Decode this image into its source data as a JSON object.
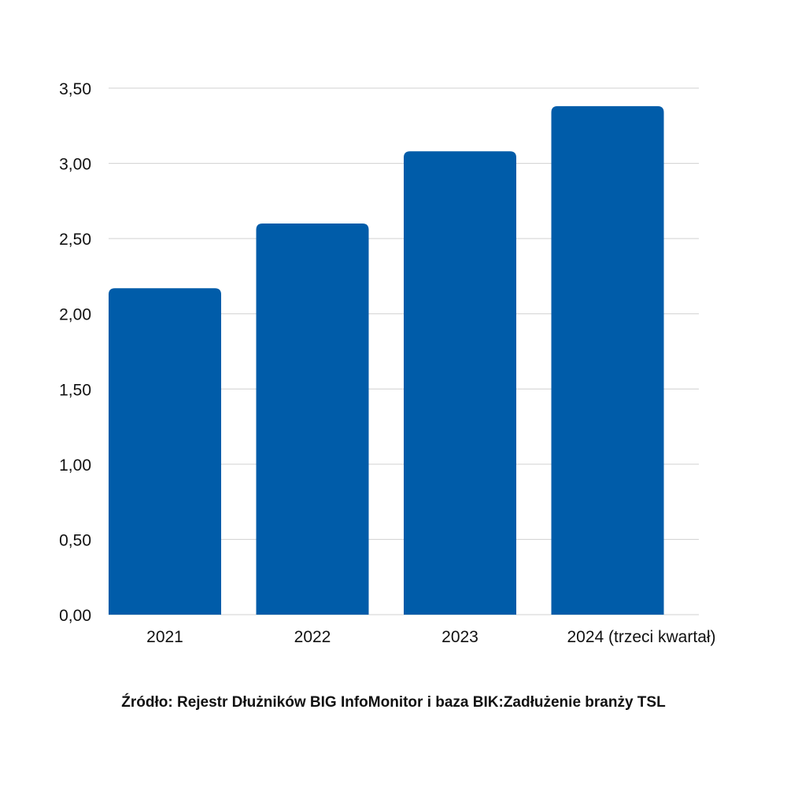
{
  "chart_data": {
    "type": "bar",
    "categories": [
      "2021",
      "2022",
      "2023",
      "2024 (trzeci kwartał)"
    ],
    "values": [
      2.17,
      2.6,
      3.08,
      3.38
    ],
    "ylim": [
      0,
      3.5
    ],
    "yticks": [
      "0,00",
      "0,50",
      "1,00",
      "1,50",
      "2,00",
      "2,50",
      "3,00",
      "3,50"
    ],
    "grid": true,
    "bar_color": "#005ca9",
    "grid_color": "#d0d0d0",
    "xlabel": "",
    "ylabel": "",
    "title": ""
  },
  "source": "Źródło: Rejestr Dłużników BIG InfoMonitor i baza BIK:Zadłużenie branży TSL"
}
